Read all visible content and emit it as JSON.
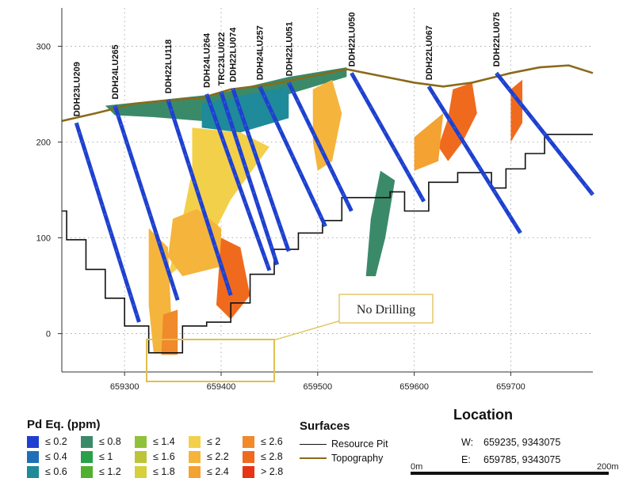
{
  "chart_data": {
    "type": "cross-section",
    "xlim": [
      659235,
      659785
    ],
    "ylim": [
      -40,
      340
    ],
    "x_ticks": [
      "659300",
      "659400",
      "659500",
      "659600",
      "659700"
    ],
    "y_ticks": [
      "300",
      "200",
      "100",
      "0"
    ],
    "grid": true,
    "topography": [
      [
        659235,
        222
      ],
      [
        659270,
        230
      ],
      [
        659310,
        240
      ],
      [
        659350,
        244
      ],
      [
        659380,
        246
      ],
      [
        659410,
        255
      ],
      [
        659450,
        260
      ],
      [
        659490,
        268
      ],
      [
        659530,
        276
      ],
      [
        659560,
        270
      ],
      [
        659600,
        262
      ],
      [
        659630,
        258
      ],
      [
        659660,
        262
      ],
      [
        659700,
        272
      ],
      [
        659730,
        278
      ],
      [
        659760,
        280
      ],
      [
        659785,
        272
      ]
    ],
    "resource_pit": [
      [
        659235,
        128
      ],
      [
        659240,
        128
      ],
      [
        659240,
        98
      ],
      [
        659260,
        98
      ],
      [
        659260,
        67
      ],
      [
        659280,
        67
      ],
      [
        659280,
        37
      ],
      [
        659300,
        37
      ],
      [
        659300,
        8
      ],
      [
        659325,
        8
      ],
      [
        659325,
        -20
      ],
      [
        659360,
        -20
      ],
      [
        659360,
        8
      ],
      [
        659385,
        8
      ],
      [
        659385,
        12
      ],
      [
        659410,
        12
      ],
      [
        659410,
        32
      ],
      [
        659430,
        32
      ],
      [
        659430,
        62
      ],
      [
        659455,
        62
      ],
      [
        659455,
        88
      ],
      [
        659480,
        88
      ],
      [
        659480,
        105
      ],
      [
        659505,
        105
      ],
      [
        659505,
        118
      ],
      [
        659525,
        118
      ],
      [
        659525,
        142
      ],
      [
        659575,
        142
      ],
      [
        659575,
        148
      ],
      [
        659590,
        148
      ],
      [
        659590,
        128
      ],
      [
        659615,
        128
      ],
      [
        659615,
        158
      ],
      [
        659645,
        158
      ],
      [
        659645,
        168
      ],
      [
        659680,
        168
      ],
      [
        659680,
        152
      ],
      [
        659695,
        152
      ],
      [
        659695,
        172
      ],
      [
        659715,
        172
      ],
      [
        659715,
        188
      ],
      [
        659735,
        188
      ],
      [
        659735,
        208
      ],
      [
        659785,
        208
      ]
    ],
    "drillholes": [
      {
        "name": "DDH23LU209",
        "collar": [
          659250,
          220
        ],
        "toe": [
          659315,
          12
        ]
      },
      {
        "name": "DDH24LU265",
        "collar": [
          659290,
          238
        ],
        "toe": [
          659355,
          35
        ]
      },
      {
        "name": "DDH22LU118",
        "collar": [
          659345,
          244
        ],
        "toe": [
          659410,
          40
        ]
      },
      {
        "name": "DDH24LU264",
        "collar": [
          659385,
          250
        ],
        "toe": [
          659450,
          66
        ]
      },
      {
        "name": "TRC23LU022",
        "collar": [
          659400,
          252
        ],
        "toe": [
          659458,
          72
        ]
      },
      {
        "name": "DDH22LU074",
        "collar": [
          659412,
          256
        ],
        "toe": [
          659470,
          86
        ]
      },
      {
        "name": "DDH24LU257",
        "collar": [
          659440,
          258
        ],
        "toe": [
          659508,
          112
        ]
      },
      {
        "name": "DDH22LU051",
        "collar": [
          659470,
          262
        ],
        "toe": [
          659535,
          128
        ]
      },
      {
        "name": "DDH22LU050",
        "collar": [
          659535,
          272
        ],
        "toe": [
          659610,
          138
        ]
      },
      {
        "name": "DDH22LU067",
        "collar": [
          659615,
          258
        ],
        "toe": [
          659710,
          105
        ]
      },
      {
        "name": "DDH22LU075",
        "collar": [
          659685,
          272
        ],
        "toe": [
          659785,
          145
        ]
      }
    ],
    "annotation": "No Drilling",
    "pd_eq_bins": [
      "≤ 0.2",
      "≤ 0.4",
      "≤ 0.6",
      "≤ 0.8",
      "≤ 1",
      "≤ 1.2",
      "≤ 1.4",
      "≤ 1.6",
      "≤ 1.8",
      "≤ 2",
      "≤ 2.2",
      "≤ 2.4",
      "≤ 2.6",
      "≤ 2.8",
      "> 2.8"
    ],
    "pd_eq_colors": [
      "#1f3fd1",
      "#1f6fb8",
      "#1f8a9a",
      "#3a8a6a",
      "#2aa04a",
      "#52b030",
      "#8fc23a",
      "#bcc438",
      "#d8cf3c",
      "#f3d04a",
      "#f5b43c",
      "#f4a232",
      "#f08a2a",
      "#f06a1e",
      "#e63414"
    ]
  },
  "legend": {
    "pd_title": "Pd Eq. (ppm)",
    "surfaces_title": "Surfaces",
    "resource_pit": "Resource Pit",
    "topography": "Topography"
  },
  "colors": {
    "topography": "#8a6a1a",
    "pit": "#111111",
    "annotation_box": "#e0c050"
  },
  "location": {
    "title": "Location",
    "w_label": "W:",
    "w_value": "659235, 9343075",
    "e_label": "E:",
    "e_value": "659785, 9343075",
    "scale_start": "0m",
    "scale_end": "200m"
  }
}
